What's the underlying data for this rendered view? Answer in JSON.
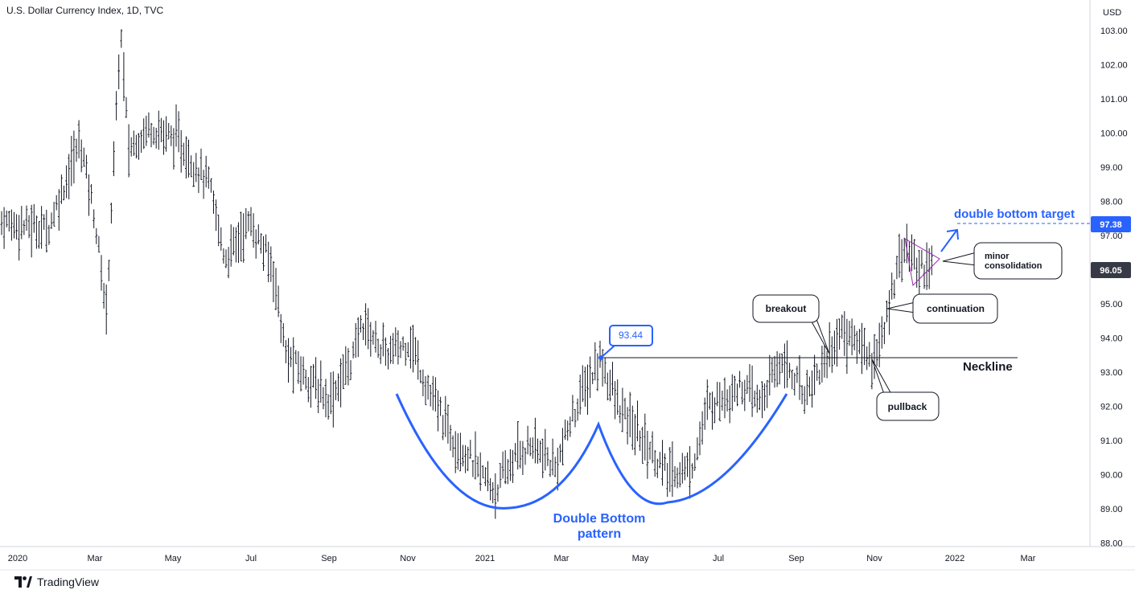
{
  "title": "U.S. Dollar Currency Index, 1D, TVC",
  "currency": "USD",
  "brand": "TradingView",
  "colors": {
    "bars": "#131722",
    "pattern": "#2962ff",
    "triangle": "#9c27b0",
    "neckline": "#131722"
  },
  "chart_data": {
    "type": "ohlc-bar",
    "title": "U.S. Dollar Currency Index, 1D, TVC",
    "ylabel": "USD",
    "ylim": [
      88.0,
      103.4
    ],
    "yticks": [
      "103.00",
      "102.00",
      "101.00",
      "100.00",
      "99.00",
      "98.00",
      "97.00",
      "96.00",
      "95.00",
      "94.00",
      "93.00",
      "92.00",
      "91.00",
      "90.00",
      "89.00",
      "88.00"
    ],
    "xticks": [
      "2020",
      "Mar",
      "May",
      "Jul",
      "Sep",
      "Nov",
      "2021",
      "Mar",
      "May",
      "Jul",
      "Sep",
      "Nov",
      "2022",
      "Mar"
    ],
    "series": [
      {
        "x": [
          "2020-01",
          "2020-02",
          "2020-03 (high)",
          "2020-03 (low)",
          "2020-04",
          "2020-05",
          "2020-06",
          "2020-07",
          "2020-08",
          "2020-09",
          "2020-10",
          "2020-11",
          "2020-12",
          "2021-01",
          "2021-02",
          "2021-03",
          "2021-04",
          "2021-05",
          "2021-06",
          "2021-07",
          "2021-08",
          "2021-09",
          "2021-10",
          "2021-11",
          "2021-12"
        ],
        "values": [
          97.4,
          98.8,
          103.0,
          94.7,
          100.0,
          99.5,
          97.2,
          95.0,
          92.7,
          93.8,
          93.9,
          92.0,
          90.2,
          89.3,
          90.7,
          92.5,
          91.3,
          90.0,
          91.5,
          92.6,
          92.7,
          93.8,
          94.2,
          96.5,
          96.05
        ]
      }
    ],
    "neckline": 93.44,
    "peak_label": "93.44",
    "target_value": 97.38,
    "target_label": "97.38",
    "last_price_label": "96.05"
  },
  "annotations": {
    "target_text": "double bottom target",
    "neckline_text": "Neckline",
    "breakout": "breakout",
    "pullback": "pullback",
    "continuation": "continuation",
    "minor_line1": "minor",
    "minor_line2": "consolidation",
    "pattern_line1": "Double Bottom",
    "pattern_line2": "pattern"
  }
}
